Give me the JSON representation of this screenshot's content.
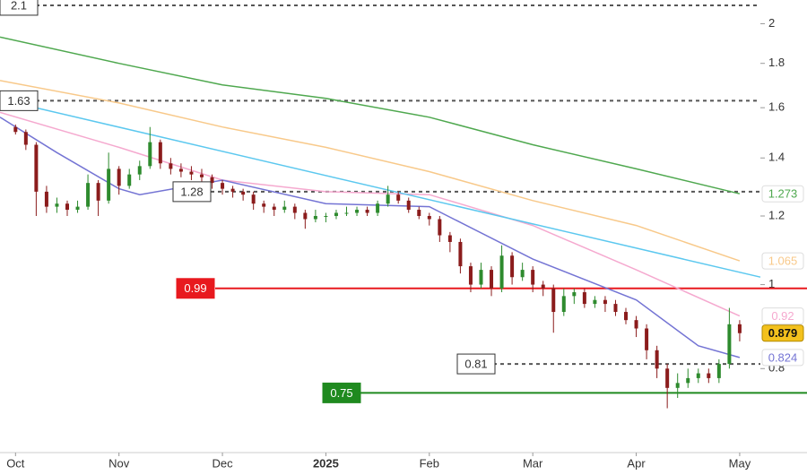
{
  "chart_data": {
    "type": "candlestick",
    "log_scale": true,
    "xlim": [
      -0.15,
      7.2
    ],
    "ylim": [
      0.64,
      2.13
    ],
    "yticks": [
      0.8,
      1,
      1.2,
      1.4,
      1.6,
      1.8,
      2
    ],
    "xticks": [
      {
        "value": 0,
        "label": "Oct"
      },
      {
        "value": 1,
        "label": "Nov"
      },
      {
        "value": 2,
        "label": "Dec"
      },
      {
        "value": 3,
        "label": "2025"
      },
      {
        "value": 4,
        "label": "Feb"
      },
      {
        "value": 5,
        "label": "Mar"
      },
      {
        "value": 6,
        "label": "Apr"
      },
      {
        "value": 7,
        "label": "May"
      }
    ],
    "candles": {
      "up_color": "#2e8b2e",
      "down_color": "#8b1c1c",
      "x": [
        0,
        0.1,
        0.2,
        0.3,
        0.4,
        0.5,
        0.6,
        0.7,
        0.8,
        0.9,
        1,
        1.1,
        1.2,
        1.3,
        1.4,
        1.5,
        1.6,
        1.7,
        1.8,
        1.9,
        2,
        2.1,
        2.2,
        2.3,
        2.4,
        2.5,
        2.6,
        2.7,
        2.8,
        2.9,
        3,
        3.1,
        3.2,
        3.3,
        3.4,
        3.5,
        3.6,
        3.7,
        3.8,
        3.9,
        4,
        4.1,
        4.2,
        4.3,
        4.4,
        4.5,
        4.6,
        4.7,
        4.8,
        4.9,
        5,
        5.1,
        5.2,
        5.3,
        5.4,
        5.5,
        5.6,
        5.7,
        5.8,
        5.9,
        6,
        6.1,
        6.2,
        6.3,
        6.4,
        6.5,
        6.6,
        6.7,
        6.8,
        6.9,
        7
      ],
      "open": [
        1.52,
        1.5,
        1.45,
        1.28,
        1.23,
        1.24,
        1.22,
        1.23,
        1.31,
        1.25,
        1.36,
        1.3,
        1.34,
        1.37,
        1.46,
        1.38,
        1.36,
        1.35,
        1.34,
        1.33,
        1.31,
        1.29,
        1.28,
        1.27,
        1.24,
        1.23,
        1.22,
        1.23,
        1.21,
        1.19,
        1.2,
        1.2,
        1.21,
        1.21,
        1.22,
        1.21,
        1.24,
        1.27,
        1.25,
        1.22,
        1.2,
        1.19,
        1.14,
        1.12,
        1.05,
        1.0,
        1.04,
        0.99,
        1.08,
        1.02,
        1.04,
        1.0,
        0.99,
        0.93,
        0.97,
        0.98,
        0.95,
        0.96,
        0.95,
        0.93,
        0.91,
        0.89,
        0.84,
        0.8,
        0.76,
        0.77,
        0.78,
        0.79,
        0.78,
        0.81,
        0.9
      ],
      "high": [
        1.53,
        1.51,
        1.46,
        1.3,
        1.26,
        1.25,
        1.25,
        1.34,
        1.32,
        1.42,
        1.37,
        1.36,
        1.39,
        1.52,
        1.47,
        1.4,
        1.38,
        1.37,
        1.36,
        1.34,
        1.32,
        1.3,
        1.29,
        1.28,
        1.25,
        1.24,
        1.25,
        1.24,
        1.22,
        1.22,
        1.21,
        1.22,
        1.23,
        1.23,
        1.23,
        1.25,
        1.3,
        1.28,
        1.26,
        1.23,
        1.21,
        1.2,
        1.15,
        1.13,
        1.06,
        1.06,
        1.05,
        1.11,
        1.09,
        1.06,
        1.05,
        1.01,
        1.0,
        0.99,
        0.99,
        0.99,
        0.97,
        0.97,
        0.96,
        0.94,
        0.92,
        0.9,
        0.85,
        0.81,
        0.79,
        0.8,
        0.8,
        0.8,
        0.82,
        0.94,
        0.91
      ],
      "low": [
        1.49,
        1.43,
        1.2,
        1.21,
        1.21,
        1.2,
        1.21,
        1.22,
        1.2,
        1.24,
        1.27,
        1.29,
        1.32,
        1.36,
        1.36,
        1.34,
        1.33,
        1.32,
        1.31,
        1.29,
        1.27,
        1.26,
        1.25,
        1.22,
        1.21,
        1.2,
        1.21,
        1.19,
        1.16,
        1.18,
        1.18,
        1.19,
        1.2,
        1.2,
        1.2,
        1.2,
        1.23,
        1.24,
        1.21,
        1.19,
        1.17,
        1.12,
        1.09,
        1.03,
        0.98,
        0.99,
        0.97,
        0.98,
        1.0,
        1.01,
        0.98,
        0.97,
        0.88,
        0.92,
        0.95,
        0.94,
        0.94,
        0.93,
        0.92,
        0.9,
        0.87,
        0.82,
        0.78,
        0.72,
        0.74,
        0.76,
        0.77,
        0.77,
        0.77,
        0.8,
        0.86
      ],
      "close": [
        1.5,
        1.45,
        1.28,
        1.23,
        1.24,
        1.22,
        1.23,
        1.31,
        1.25,
        1.36,
        1.3,
        1.34,
        1.37,
        1.46,
        1.38,
        1.36,
        1.35,
        1.34,
        1.33,
        1.31,
        1.29,
        1.28,
        1.27,
        1.24,
        1.23,
        1.22,
        1.23,
        1.21,
        1.19,
        1.2,
        1.2,
        1.21,
        1.21,
        1.22,
        1.21,
        1.24,
        1.27,
        1.25,
        1.22,
        1.2,
        1.19,
        1.14,
        1.12,
        1.05,
        1.0,
        1.04,
        0.99,
        1.08,
        1.02,
        1.04,
        1.0,
        0.99,
        0.93,
        0.97,
        0.98,
        0.95,
        0.96,
        0.95,
        0.93,
        0.91,
        0.89,
        0.84,
        0.8,
        0.76,
        0.77,
        0.78,
        0.79,
        0.78,
        0.81,
        0.9,
        0.879
      ],
      "last_color": "#f3c11d"
    },
    "lines": [
      {
        "color": "#4fa84f",
        "x": [
          -0.15,
          1,
          2,
          3,
          4,
          5,
          6,
          7
        ],
        "values": [
          1.93,
          1.8,
          1.7,
          1.64,
          1.56,
          1.45,
          1.36,
          1.273
        ]
      },
      {
        "color": "#f8c98a",
        "x": [
          -0.15,
          1,
          2,
          3,
          4,
          5,
          6,
          7
        ],
        "values": [
          1.72,
          1.62,
          1.52,
          1.44,
          1.35,
          1.25,
          1.17,
          1.065
        ]
      },
      {
        "color": "#f5a9cf",
        "x": [
          -0.15,
          1,
          2,
          3,
          4,
          5,
          6,
          7
        ],
        "values": [
          1.58,
          1.44,
          1.32,
          1.28,
          1.27,
          1.17,
          1.04,
          0.92
        ]
      },
      {
        "color": "#7474d4",
        "x": [
          -0.15,
          0.4,
          1,
          1.2,
          2,
          3,
          4,
          5,
          6,
          6.6,
          7
        ],
        "values": [
          1.56,
          1.42,
          1.29,
          1.27,
          1.32,
          1.24,
          1.23,
          1.07,
          0.96,
          0.85,
          0.824
        ]
      }
    ],
    "trendline": {
      "color": "#5cc8ef",
      "x": [
        0.1,
        7.2
      ],
      "values": [
        1.61,
        1.02
      ]
    },
    "levels": [
      {
        "value": 2.1,
        "style": "dashed",
        "color": "#555555"
      },
      {
        "value": 1.63,
        "style": "dashed",
        "color": "#555555"
      },
      {
        "value": 1.28,
        "style": "dashed",
        "color": "#555555"
      },
      {
        "value": 0.99,
        "style": "solid",
        "color": "#e8191e"
      },
      {
        "value": 0.81,
        "style": "dashed",
        "color": "#555555"
      },
      {
        "value": 0.75,
        "style": "solid",
        "color": "#1f8a1f"
      }
    ]
  }
}
